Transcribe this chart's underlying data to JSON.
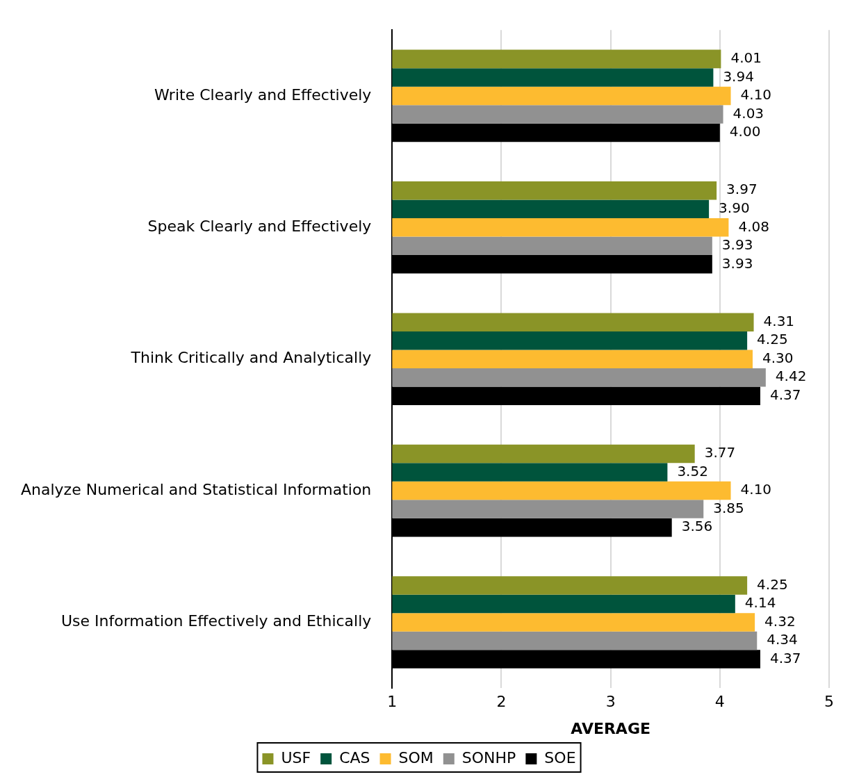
{
  "chart_data": {
    "type": "bar",
    "orientation": "horizontal",
    "xlabel": "AVERAGE",
    "categories": [
      "Write Clearly and Effectively",
      "Speak Clearly and Effectively",
      "Think Critically and Analytically",
      "Analyze Numerical and Statistical Information",
      "Use Information Effectively and Ethically"
    ],
    "series": [
      {
        "name": "USF",
        "color": "#8a9427",
        "values": [
          4.01,
          3.97,
          4.31,
          3.77,
          4.25
        ],
        "value_labels": [
          "4.01",
          "3.97",
          "4.31",
          "3.77",
          "4.25"
        ]
      },
      {
        "name": "CAS",
        "color": "#00543c",
        "values": [
          3.94,
          3.9,
          4.25,
          3.52,
          4.14
        ],
        "value_labels": [
          "3.94",
          "3.90",
          "4.25",
          "3.52",
          "4.14"
        ]
      },
      {
        "name": "SOM",
        "color": "#fdbb30",
        "values": [
          4.1,
          4.08,
          4.3,
          4.1,
          4.32
        ],
        "value_labels": [
          "4.10",
          "4.08",
          "4.30",
          "4.10",
          "4.32"
        ]
      },
      {
        "name": "SONHP",
        "color": "#919191",
        "values": [
          4.03,
          3.93,
          4.42,
          3.85,
          4.34
        ],
        "value_labels": [
          "4.03",
          "3.93",
          "4.42",
          "3.85",
          "4.34"
        ]
      },
      {
        "name": "SOE",
        "color": "#000000",
        "values": [
          4.0,
          3.93,
          4.37,
          3.56,
          4.37
        ],
        "value_labels": [
          "4.00",
          "3.93",
          "4.37",
          "3.56",
          "4.37"
        ]
      }
    ],
    "xlim": [
      1,
      5
    ],
    "xticks": [
      1,
      2,
      3,
      4,
      5
    ],
    "grid": "x",
    "legend": "bottom"
  }
}
